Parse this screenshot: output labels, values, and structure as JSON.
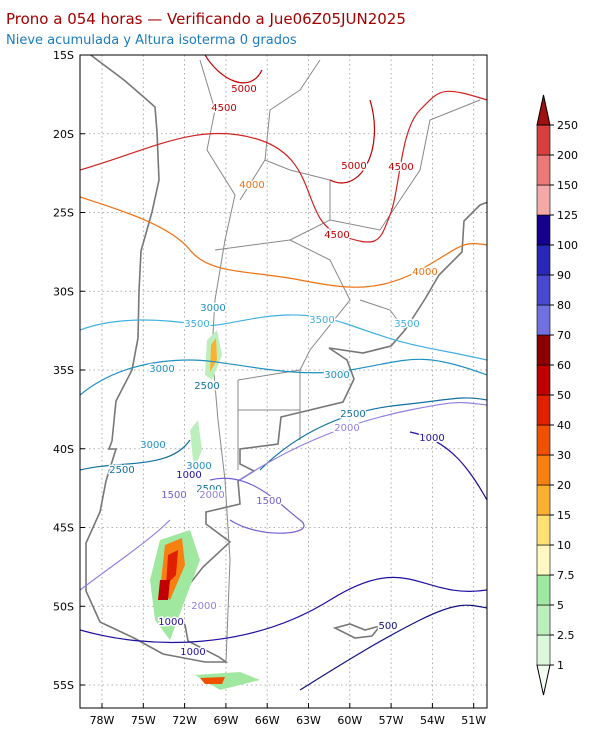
{
  "header": {
    "title": "Prono a 054 horas — Verificando a Jue06Z05JUN2025",
    "subtitle": "Nieve acumulada y Altura isoterma 0 grados"
  },
  "map": {
    "lat_labels": [
      "15S",
      "20S",
      "25S",
      "30S",
      "35S",
      "40S",
      "45S",
      "50S",
      "55S"
    ],
    "lon_labels": [
      "78W",
      "75W",
      "72W",
      "69W",
      "66W",
      "63W",
      "60W",
      "57W",
      "54W",
      "51W"
    ],
    "contour_labels": [
      "5000",
      "4500",
      "5000",
      "4500",
      "4000",
      "4500",
      "4000",
      "3000",
      "3500",
      "3500",
      "3500",
      "3000",
      "2500",
      "3000",
      "2500",
      "2000",
      "1000",
      "3000",
      "3000",
      "1000",
      "2500",
      "2500",
      "1500",
      "2000",
      "1500",
      "2000",
      "1000",
      "500",
      "1000"
    ]
  },
  "colorbar": {
    "labels": [
      1,
      2.5,
      5,
      7.5,
      10,
      15,
      20,
      30,
      40,
      50,
      60,
      70,
      80,
      90,
      100,
      125,
      150,
      200,
      250
    ],
    "colors": [
      "#f4fff4",
      "#dcf8dc",
      "#bdefbd",
      "#a0e8a0",
      "#fff8c0",
      "#ffe070",
      "#fbb030",
      "#f88010",
      "#f05000",
      "#e02000",
      "#c00000",
      "#8c0000",
      "#7070e0",
      "#4848d0",
      "#2828b8",
      "#14008c",
      "#f4a8a8",
      "#ec7878",
      "#d84040",
      "#c02020",
      "#a01010"
    ]
  }
}
